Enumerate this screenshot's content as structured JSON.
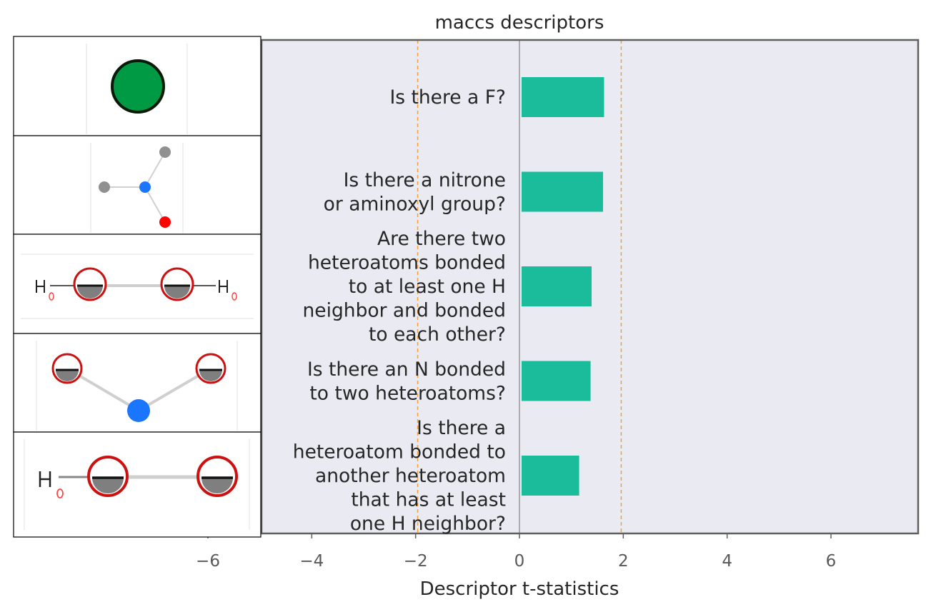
{
  "chart_data": {
    "type": "bar",
    "orientation": "horizontal",
    "title": "maccs descriptors",
    "xlabel": "Descriptor t-statistics",
    "ylabel": "",
    "xlim": [
      -6.2,
      7.7
    ],
    "xticks": [
      -6,
      -4,
      -2,
      0,
      2,
      4,
      6
    ],
    "xtick_labels": [
      "−6",
      "−4",
      "−2",
      "0",
      "2",
      "4",
      "6"
    ],
    "reference_lines": [
      -1.96,
      1.96
    ],
    "categories": [
      "Is there a F?",
      "Is there a nitrone\nor aminoxyl group?",
      "Are there two\nheteroatoms bonded\nto at least one H\nneighbor and bonded\nto each other?",
      "Is there an N bonded\nto two heteroatoms?",
      "Is there a\nheteroatom bonded to\nanother heteroatom\nthat has at least\none H neighbor?"
    ],
    "values": [
      1.63,
      1.61,
      1.39,
      1.37,
      1.15
    ],
    "grid": false,
    "colors": {
      "bar": "#1abc9c",
      "plot_background": "#eaeaf2",
      "reference_line": "#f0a040",
      "zero_line": "#8c8c8c",
      "frame": "#5f5f5f"
    },
    "structure_images": [
      "fluorine-atom",
      "nitrone-aminoxyl-fragment",
      "two-heteroatoms-bonded-with-h",
      "n-bonded-two-heteroatoms",
      "heteroatom-bonded-heteroatom-with-h"
    ]
  }
}
